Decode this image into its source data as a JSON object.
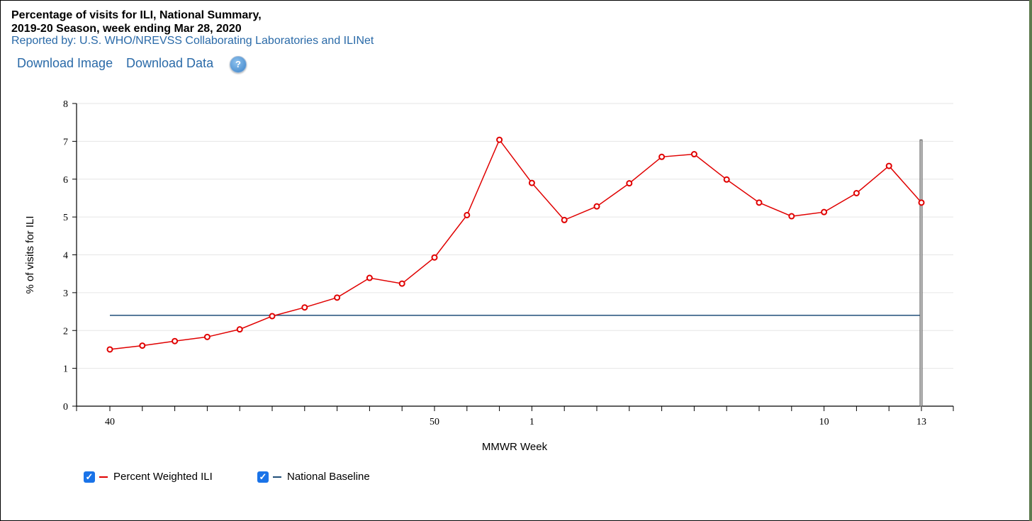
{
  "header": {
    "title_line1": "Percentage of visits for ILI, National Summary,",
    "title_line2": "2019-20 Season, week ending Mar 28, 2020",
    "reported_by": "Reported by: U.S. WHO/NREVSS Collaborating Laboratories and ILINet"
  },
  "toolbar": {
    "download_image": "Download Image",
    "download_data": "Download Data",
    "help": "?"
  },
  "legend": {
    "series1": "Percent Weighted ILI",
    "series2": "National Baseline"
  },
  "colors": {
    "ili": "#e00000",
    "baseline": "#1f4e79",
    "checkbox": "#1a73e8",
    "link": "#2a6aa8"
  },
  "chart_data": {
    "type": "line",
    "title": "",
    "xlabel": "MMWR Week",
    "ylabel": "% of visits for ILI",
    "ylim": [
      0,
      8
    ],
    "yticks": [
      0,
      1,
      2,
      3,
      4,
      5,
      6,
      7,
      8
    ],
    "x": [
      40,
      41,
      42,
      43,
      44,
      45,
      46,
      47,
      48,
      49,
      50,
      51,
      52,
      1,
      2,
      3,
      4,
      5,
      6,
      7,
      8,
      9,
      10,
      11,
      12,
      13
    ],
    "x_tick_labels": [
      "40",
      "50",
      "1",
      "10",
      "13"
    ],
    "series": [
      {
        "name": "Percent Weighted ILI",
        "values": [
          1.5,
          1.6,
          1.72,
          1.83,
          2.03,
          2.38,
          2.61,
          2.87,
          3.39,
          3.24,
          3.93,
          5.05,
          7.04,
          5.9,
          4.92,
          5.28,
          5.89,
          6.59,
          6.66,
          5.99,
          5.38,
          5.02,
          5.13,
          5.63,
          6.35,
          5.38
        ]
      },
      {
        "name": "National Baseline",
        "values": [
          2.4,
          2.4,
          2.4,
          2.4,
          2.4,
          2.4,
          2.4,
          2.4,
          2.4,
          2.4,
          2.4,
          2.4,
          2.4,
          2.4,
          2.4,
          2.4,
          2.4,
          2.4,
          2.4,
          2.4,
          2.4,
          2.4,
          2.4,
          2.4,
          2.4,
          2.4
        ]
      }
    ],
    "grid": true,
    "legend_position": "bottom-left"
  }
}
